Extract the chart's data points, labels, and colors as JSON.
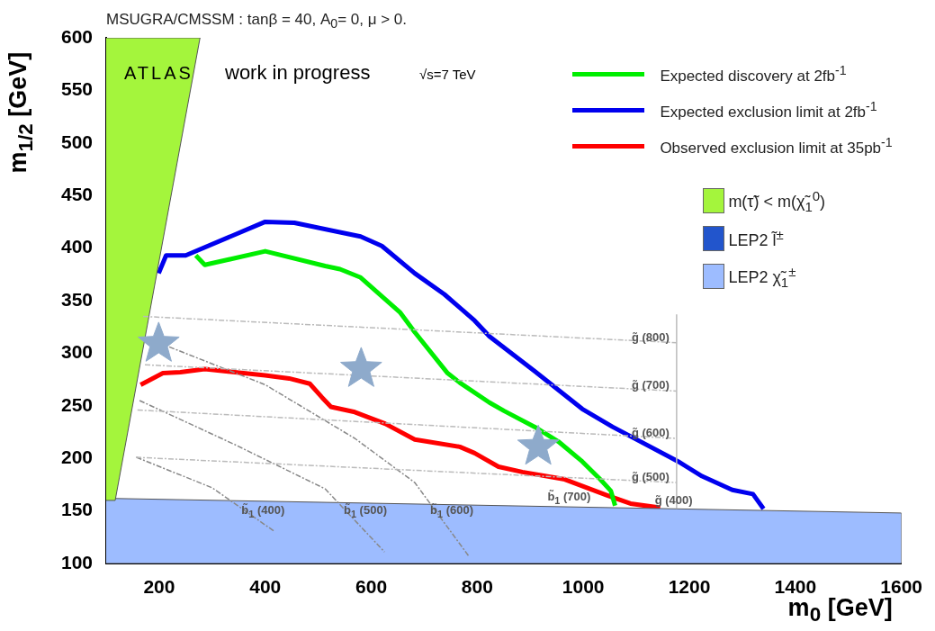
{
  "chart_data": {
    "type": "line",
    "title": "MSUGRA/CMSSM : tanβ = 40, A$_{0}$= 0, μ > 0.",
    "xlabel": "m$_{0}$ [GeV]",
    "ylabel": "m$_{1/2}$ [GeV]",
    "xlim": [
      100,
      1600
    ],
    "ylim": [
      100,
      600
    ],
    "xticks": [
      200,
      400,
      600,
      800,
      1000,
      1200,
      1400,
      1600
    ],
    "yticks": [
      100,
      150,
      200,
      250,
      300,
      350,
      400,
      450,
      500,
      550,
      600
    ],
    "grid": false,
    "legend": "top right",
    "series": [
      {
        "name": "Expected discovery at 2fb$^{-1}$",
        "color": "#00ee00",
        "x": [
          269,
          286,
          400,
          513,
          541,
          580,
          654,
          682,
          744,
          767,
          823,
          851,
          908,
          953,
          998,
          1032,
          1052,
          1060
        ],
        "values": [
          393,
          384,
          397,
          383,
          380,
          372,
          339,
          320,
          281,
          272,
          253,
          245,
          230,
          216,
          197,
          180,
          169,
          155
        ]
      },
      {
        "name": "Expected exclusion limit at 2fb$^{-1}$",
        "color": "#0000ee",
        "x": [
          199,
          213,
          250,
          400,
          455,
          580,
          620,
          682,
          738,
          795,
          823,
          908,
          998,
          1055,
          1179,
          1224,
          1281,
          1320,
          1340
        ],
        "values": [
          376,
          393,
          393,
          425,
          424,
          411,
          402,
          376,
          356,
          331,
          316,
          283,
          247,
          230,
          197,
          183,
          170,
          166,
          152
        ]
      },
      {
        "name": "Observed exclusion limit at 35pb$^{-1}$",
        "color": "#ff0000",
        "x": [
          165,
          207,
          240,
          286,
          400,
          445,
          484,
          507,
          524,
          569,
          626,
          682,
          767,
          795,
          840,
          885,
          965,
          1044,
          1089,
          1145
        ],
        "values": [
          270,
          281,
          282,
          285,
          279,
          276,
          271,
          258,
          249,
          244,
          233,
          218,
          211,
          205,
          192,
          187,
          180,
          165,
          157,
          153
        ]
      },
      {
        "type": "line",
        "color": "#bbbbbb",
        "line_style": "dashed",
        "x": [
          170,
          1176
        ],
        "values": [
          335,
          310
        ]
      },
      {
        "type": "line",
        "color": "#bbbbbb",
        "line_style": "dashed",
        "x": [
          173,
          1176
        ],
        "values": [
          289,
          264
        ]
      },
      {
        "type": "line",
        "color": "#bbbbbb",
        "line_style": "dashed",
        "x": [
          159,
          1176
        ],
        "values": [
          246,
          219
        ]
      },
      {
        "type": "line",
        "color": "#bbbbbb",
        "line_style": "dashed",
        "x": [
          156,
          1176
        ],
        "values": [
          201,
          177
        ]
      },
      {
        "type": "line",
        "color": "#bbbbbb",
        "line_style": "solid",
        "x": [
          1176,
          1176
        ],
        "values": [
          152,
          337
        ]
      },
      {
        "type": "line",
        "color": "#888888",
        "line_style": "dashed",
        "x": [
          157,
          300,
          416
        ],
        "values": [
          201,
          172,
          131
        ]
      },
      {
        "type": "line",
        "color": "#888888",
        "line_style": "dashed",
        "x": [
          163,
          343,
          513,
          625
        ],
        "values": [
          255,
          213,
          171,
          111
        ]
      },
      {
        "type": "line",
        "color": "#888888",
        "line_style": "dashed",
        "x": [
          219,
          400,
          569,
          682,
          784
        ],
        "values": [
          306,
          270,
          219,
          177,
          107
        ]
      },
      {
        "type": "scatter",
        "color": "#8eaacb",
        "marker": "star",
        "x": [
          199,
          581,
          915
        ],
        "values": [
          309,
          285,
          211
        ]
      },
      {
        "type": "area",
        "name": "m(τ̃) < m(χ̃$_{1}$$^{0}$)",
        "color": "#a4f53c",
        "x": [
          100,
          117,
          277,
          100
        ],
        "values": [
          160,
          160,
          600,
          600
        ]
      },
      {
        "type": "area",
        "name": "LEP2 l̃$^{±}$",
        "color": "#2255cc"
      },
      {
        "type": "area",
        "name": "LEP2 χ̃$_{1}$$^{±}$",
        "color": "#9dbcff",
        "x": [
          100,
          1600,
          1600,
          100
        ],
        "values": [
          100,
          100,
          148,
          162
        ]
      }
    ],
    "annotations": [
      "ATLAS",
      "work in progress",
      "√s=7 TeV",
      "g̃ (400)",
      "b̃$_{1}$ (700)",
      {
        "text": "g̃ (800)",
        "x": 1176,
        "y": 310
      },
      {
        "text": "g̃ (700)",
        "x": 1176,
        "y": 264
      },
      {
        "text": "g̃ (600)",
        "x": 1176,
        "y": 219
      },
      {
        "text": "g̃ (500)",
        "x": 1176,
        "y": 177
      },
      {
        "text": "b̃$_{1}$ (400)",
        "x": 345,
        "y": 156
      },
      {
        "text": "b̃$_{1}$ (500)",
        "x": 538,
        "y": 156
      },
      {
        "text": "b̃$_{1}$ (600)",
        "x": 701,
        "y": 156
      }
    ]
  }
}
